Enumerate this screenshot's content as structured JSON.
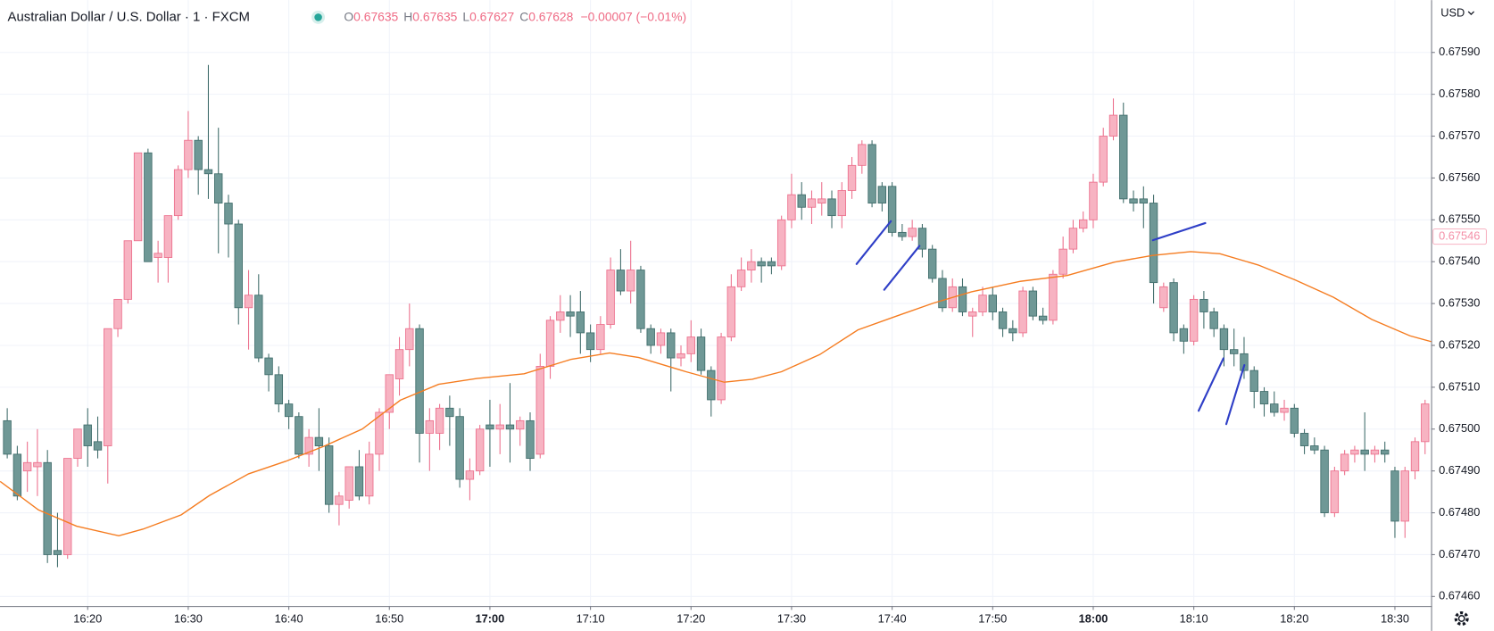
{
  "chart_data": {
    "type": "candlestick",
    "title": "Australian Dollar / U.S. Dollar · 1 · FXCM",
    "legend": {
      "o_label": "O",
      "o": "0.67635",
      "h_label": "H",
      "h": "0.67635",
      "l_label": "L",
      "l": "0.67627",
      "c_label": "C",
      "c": "0.67628",
      "change": "−0.00007 (−0.01%)"
    },
    "currency": "USD",
    "up_color": "#f7b3c2",
    "up_border": "#ec6f8c",
    "down_color": "#6f9896",
    "down_border": "#3f6c6a",
    "ma_color": "#f57c20",
    "xlim": [
      -0.72,
      141.6
    ],
    "xticks": [
      {
        "value": 8,
        "label": "16:20"
      },
      {
        "value": 18,
        "label": "16:30"
      },
      {
        "value": 28,
        "label": "16:40"
      },
      {
        "value": 38,
        "label": "16:50"
      },
      {
        "value": 48,
        "label": "17:00"
      },
      {
        "value": 58,
        "label": "17:10"
      },
      {
        "value": 68,
        "label": "17:20"
      },
      {
        "value": 78,
        "label": "17:30"
      },
      {
        "value": 88,
        "label": "17:40"
      },
      {
        "value": 98,
        "label": "17:50"
      },
      {
        "value": 108,
        "label": "18:00"
      },
      {
        "value": 118,
        "label": "18:10"
      },
      {
        "value": 128,
        "label": "18:20"
      },
      {
        "value": 138,
        "label": "18:30"
      }
    ],
    "ylim": [
      0.674577,
      0.676025
    ],
    "yticks": [
      {
        "value": 0.6746,
        "label": "0.67460"
      },
      {
        "value": 0.6747,
        "label": "0.67470"
      },
      {
        "value": 0.6748,
        "label": "0.67480"
      },
      {
        "value": 0.6749,
        "label": "0.67490"
      },
      {
        "value": 0.675,
        "label": "0.67500"
      },
      {
        "value": 0.6751,
        "label": "0.67510"
      },
      {
        "value": 0.6752,
        "label": "0.67520"
      },
      {
        "value": 0.6753,
        "label": "0.67530"
      },
      {
        "value": 0.6754,
        "label": "0.67540"
      },
      {
        "value": 0.6755,
        "label": "0.67550"
      },
      {
        "value": 0.6756,
        "label": "0.67560"
      },
      {
        "value": 0.6757,
        "label": "0.67570"
      },
      {
        "value": 0.6758,
        "label": "0.67580"
      },
      {
        "value": 0.6759,
        "label": "0.67590"
      }
    ],
    "grid": true,
    "price_tag": {
      "value": 0.67546,
      "label": "0.67546"
    },
    "open": [
      0.67502,
      0.67494,
      0.6749,
      0.67491,
      0.67492,
      0.67471,
      0.6747,
      0.67493,
      0.67501,
      0.67497,
      0.67496,
      0.67524,
      0.67531,
      0.67545,
      0.67566,
      0.67541,
      0.67541,
      0.67551,
      0.67562,
      0.67569,
      0.67562,
      0.67561,
      0.67554,
      0.67549,
      0.67529,
      0.67532,
      0.67517,
      0.67513,
      0.67506,
      0.67503,
      0.67494,
      0.67498,
      0.67496,
      0.67482,
      0.67483,
      0.67491,
      0.67484,
      0.67494,
      0.67504,
      0.67512,
      0.67519,
      0.67524,
      0.67499,
      0.67499,
      0.67505,
      0.67503,
      0.67488,
      0.6749,
      0.67501,
      0.675,
      0.67501,
      0.675,
      0.67502,
      0.67494,
      0.67515,
      0.67526,
      0.67528,
      0.67528,
      0.67523,
      0.67519,
      0.67525,
      0.67538,
      0.67533,
      0.67538,
      0.67524,
      0.6752,
      0.67523,
      0.67517,
      0.67518,
      0.67522,
      0.67514,
      0.67507,
      0.67522,
      0.67534,
      0.67538,
      0.6754,
      0.6754,
      0.67539,
      0.6755,
      0.67556,
      0.67553,
      0.67554,
      0.67555,
      0.67551,
      0.67557,
      0.67563,
      0.67568,
      0.67558,
      0.67558,
      0.67547,
      0.67546,
      0.67548,
      0.67543,
      0.67536,
      0.67529,
      0.67534,
      0.67527,
      0.67528,
      0.67532,
      0.67528,
      0.67524,
      0.67523,
      0.67533,
      0.67527,
      0.67526,
      0.67537,
      0.67543,
      0.67548,
      0.6755,
      0.67559,
      0.6757,
      0.67575,
      0.67555,
      0.67555,
      0.67554,
      0.67529,
      0.67535,
      0.67524,
      0.67521,
      0.67531,
      0.67528,
      0.67524,
      0.67519,
      0.67518,
      0.67514,
      0.67509,
      0.67506,
      0.67504,
      0.67505,
      0.67499,
      0.67496,
      0.67495,
      0.6748,
      0.6749,
      0.67494,
      0.67495,
      0.67494,
      0.67495,
      0.6749,
      0.67478,
      0.6749,
      0.67497
    ],
    "high": [
      0.67505,
      0.67496,
      0.67497,
      0.675,
      0.67495,
      0.6748,
      0.67493,
      0.675,
      0.67505,
      0.67503,
      0.67524,
      0.67531,
      0.67545,
      0.67566,
      0.67567,
      0.67545,
      0.67551,
      0.67563,
      0.67576,
      0.6757,
      0.67587,
      0.67572,
      0.67556,
      0.6755,
      0.67538,
      0.67537,
      0.67518,
      0.67515,
      0.67507,
      0.67504,
      0.675,
      0.67505,
      0.67498,
      0.67485,
      0.67491,
      0.67495,
      0.67497,
      0.67505,
      0.67513,
      0.67522,
      0.6753,
      0.67525,
      0.67505,
      0.67506,
      0.67508,
      0.67505,
      0.67493,
      0.67501,
      0.67507,
      0.67506,
      0.67511,
      0.67503,
      0.67504,
      0.67518,
      0.67527,
      0.67532,
      0.67532,
      0.67533,
      0.67525,
      0.67527,
      0.67541,
      0.67543,
      0.67545,
      0.67539,
      0.67525,
      0.67524,
      0.67524,
      0.6752,
      0.67526,
      0.67524,
      0.67515,
      0.67523,
      0.67537,
      0.67541,
      0.67543,
      0.67541,
      0.67541,
      0.67551,
      0.67561,
      0.67559,
      0.67557,
      0.67559,
      0.67557,
      0.67559,
      0.67565,
      0.67569,
      0.67569,
      0.67559,
      0.67559,
      0.67549,
      0.6755,
      0.67549,
      0.67544,
      0.67538,
      0.67536,
      0.67536,
      0.67529,
      0.67534,
      0.67534,
      0.67529,
      0.67526,
      0.67534,
      0.67534,
      0.67529,
      0.67538,
      0.67546,
      0.6755,
      0.67552,
      0.67561,
      0.67572,
      0.67579,
      0.67578,
      0.67557,
      0.67558,
      0.67556,
      0.67535,
      0.67536,
      0.67525,
      0.67532,
      0.67533,
      0.67529,
      0.67525,
      0.67524,
      0.67522,
      0.67515,
      0.6751,
      0.67509,
      0.67507,
      0.67506,
      0.675,
      0.67498,
      0.67496,
      0.67491,
      0.67495,
      0.67496,
      0.67504,
      0.67496,
      0.67497,
      0.67491,
      0.67491,
      0.67498,
      0.67507
    ],
    "low": [
      0.67493,
      0.67483,
      0.67485,
      0.67484,
      0.67468,
      0.67467,
      0.67469,
      0.67491,
      0.67491,
      0.67493,
      0.67487,
      0.67522,
      0.6753,
      0.67545,
      0.6754,
      0.67535,
      0.67535,
      0.6755,
      0.6756,
      0.67556,
      0.67555,
      0.67542,
      0.67541,
      0.67525,
      0.67519,
      0.67516,
      0.67509,
      0.67504,
      0.675,
      0.67493,
      0.67491,
      0.6749,
      0.6748,
      0.67477,
      0.67481,
      0.67483,
      0.67482,
      0.6749,
      0.675,
      0.67508,
      0.67515,
      0.67492,
      0.6749,
      0.67495,
      0.67496,
      0.67486,
      0.67483,
      0.67489,
      0.67491,
      0.67494,
      0.67492,
      0.67496,
      0.6749,
      0.67493,
      0.67512,
      0.67523,
      0.67522,
      0.67518,
      0.67516,
      0.67518,
      0.67524,
      0.67532,
      0.6753,
      0.67523,
      0.67518,
      0.67518,
      0.67509,
      0.67515,
      0.67516,
      0.67513,
      0.67503,
      0.67506,
      0.67521,
      0.67533,
      0.67535,
      0.67535,
      0.67537,
      0.67538,
      0.67548,
      0.6755,
      0.67549,
      0.67551,
      0.67548,
      0.67548,
      0.67555,
      0.67561,
      0.67553,
      0.67552,
      0.67546,
      0.67545,
      0.67545,
      0.67541,
      0.67535,
      0.67528,
      0.67528,
      0.67527,
      0.67522,
      0.67527,
      0.67526,
      0.67522,
      0.67521,
      0.67522,
      0.67526,
      0.67525,
      0.67525,
      0.67536,
      0.67542,
      0.67547,
      0.67548,
      0.67558,
      0.67569,
      0.67554,
      0.67552,
      0.67548,
      0.6753,
      0.67528,
      0.67521,
      0.67518,
      0.6752,
      0.67524,
      0.67522,
      0.67515,
      0.67515,
      0.67512,
      0.67505,
      0.67503,
      0.67503,
      0.67502,
      0.67498,
      0.67494,
      0.67494,
      0.67479,
      0.67479,
      0.67489,
      0.67492,
      0.6749,
      0.67492,
      0.67492,
      0.67474,
      0.67474,
      0.67488,
      0.67494
    ],
    "close": [
      0.67494,
      0.67484,
      0.67492,
      0.67492,
      0.6747,
      0.6747,
      0.67493,
      0.675,
      0.67496,
      0.67495,
      0.67524,
      0.67531,
      0.67545,
      0.67566,
      0.6754,
      0.67542,
      0.67551,
      0.67562,
      0.67569,
      0.67562,
      0.67561,
      0.67554,
      0.67549,
      0.67529,
      0.67532,
      0.67517,
      0.67513,
      0.67506,
      0.67503,
      0.67494,
      0.67498,
      0.67496,
      0.67482,
      0.67484,
      0.67491,
      0.67484,
      0.67494,
      0.67504,
      0.67513,
      0.67519,
      0.67524,
      0.67499,
      0.67502,
      0.67505,
      0.67503,
      0.67488,
      0.6749,
      0.675,
      0.675,
      0.67501,
      0.675,
      0.67502,
      0.67493,
      0.67515,
      0.67526,
      0.67528,
      0.67527,
      0.67523,
      0.67519,
      0.67525,
      0.67538,
      0.67533,
      0.67538,
      0.67524,
      0.6752,
      0.67523,
      0.67517,
      0.67518,
      0.67522,
      0.67514,
      0.67507,
      0.67522,
      0.67534,
      0.67538,
      0.6754,
      0.67539,
      0.67539,
      0.6755,
      0.67556,
      0.67553,
      0.67555,
      0.67555,
      0.67551,
      0.67557,
      0.67563,
      0.67568,
      0.67554,
      0.67554,
      0.67547,
      0.67546,
      0.67548,
      0.67543,
      0.67536,
      0.67529,
      0.67534,
      0.67528,
      0.67528,
      0.67532,
      0.67528,
      0.67524,
      0.67523,
      0.67533,
      0.67527,
      0.67526,
      0.67537,
      0.67543,
      0.67548,
      0.6755,
      0.67559,
      0.6757,
      0.67575,
      0.67555,
      0.67554,
      0.67554,
      0.67535,
      0.67534,
      0.67523,
      0.67521,
      0.67531,
      0.67528,
      0.67524,
      0.67519,
      0.67518,
      0.67514,
      0.67509,
      0.67506,
      0.67504,
      0.67505,
      0.67499,
      0.67496,
      0.67495,
      0.6748,
      0.6749,
      0.67494,
      0.67495,
      0.67494,
      0.67495,
      0.67494,
      0.67478,
      0.6749,
      0.67497,
      0.67506
    ],
    "ma": {
      "x": [
        -0.7,
        3.1,
        6.9,
        11.1,
        13.5,
        17.3,
        20.1,
        24.0,
        27.7,
        31.5,
        35.3,
        39.1,
        42.9,
        46.7,
        51.4,
        56.1,
        59.9,
        62.8,
        67.5,
        71.3,
        74.1,
        77.0,
        80.8,
        84.6,
        88.3,
        92.1,
        95.9,
        100.7,
        105.4,
        110.1,
        113.9,
        117.7,
        120.6,
        124.4,
        128.1,
        131.9,
        135.7,
        139.5,
        141.6
      ],
      "values": [
        0.674875,
        0.674807,
        0.674768,
        0.674745,
        0.674761,
        0.674795,
        0.674841,
        0.674893,
        0.674923,
        0.674959,
        0.675,
        0.675069,
        0.675107,
        0.675121,
        0.675132,
        0.675167,
        0.675182,
        0.675171,
        0.675137,
        0.675112,
        0.675119,
        0.675137,
        0.675178,
        0.675237,
        0.675269,
        0.675301,
        0.675328,
        0.675353,
        0.675367,
        0.675399,
        0.675415,
        0.675424,
        0.675419,
        0.675392,
        0.675356,
        0.675315,
        0.675262,
        0.675223,
        0.675209
      ]
    }
  }
}
